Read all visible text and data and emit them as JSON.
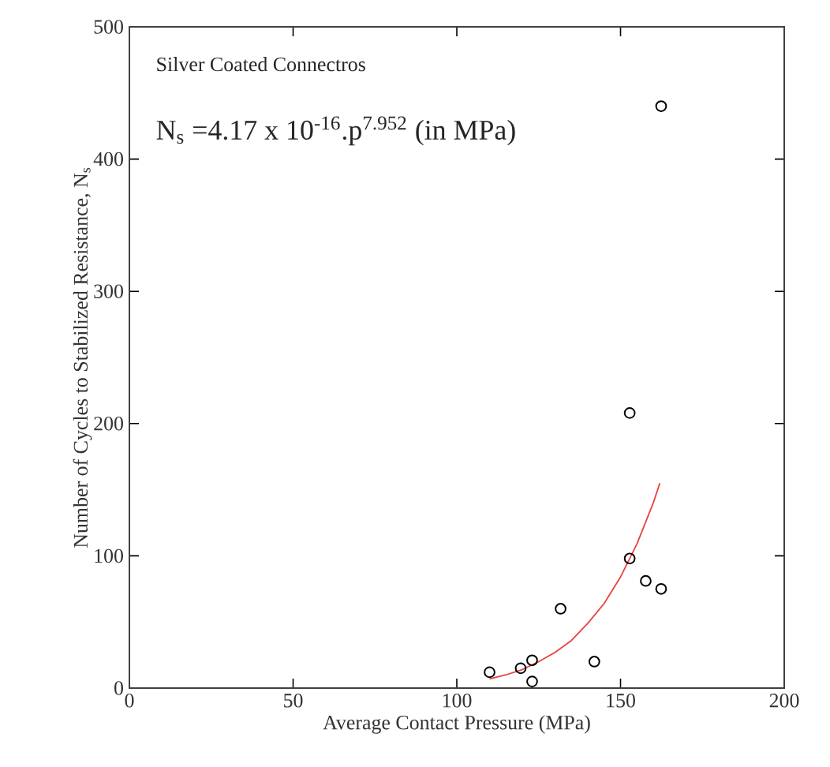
{
  "chart_data": {
    "type": "scatter",
    "xlabel": "Average Contact Pressure (MPa)",
    "ylabel": "Number of Cycles to Stabilized Resistance, N$_{s}$",
    "annotations": [
      "Silver Coated Connectros",
      "N$_{s}$ =4.17 x 10$^{-16}$.p$^{7.952}$ (in MPa)"
    ],
    "xlim": [
      0,
      200
    ],
    "ylim": [
      0,
      500
    ],
    "xticks": [
      0,
      50,
      100,
      150,
      200
    ],
    "yticks": [
      0,
      100,
      200,
      300,
      400,
      500
    ],
    "grid": false,
    "series": [
      {
        "marker": "circle",
        "color": "#000000",
        "x": [
          110,
          119.5,
          123,
          123,
          131.7,
          142,
          152.8,
          152.8,
          157.7,
          162.4,
          162.4
        ],
        "values": [
          12,
          15,
          21,
          5,
          60,
          20,
          208,
          98,
          81,
          75,
          440
        ]
      },
      {
        "type": "line",
        "marker": "none",
        "color": "#e8413c",
        "x": [
          110,
          115,
          120,
          125,
          130,
          135,
          140,
          145,
          150,
          155,
          160,
          162
        ],
        "values": [
          7,
          10,
          14,
          20,
          27,
          36,
          49,
          64,
          84,
          109,
          140,
          155
        ]
      }
    ]
  }
}
